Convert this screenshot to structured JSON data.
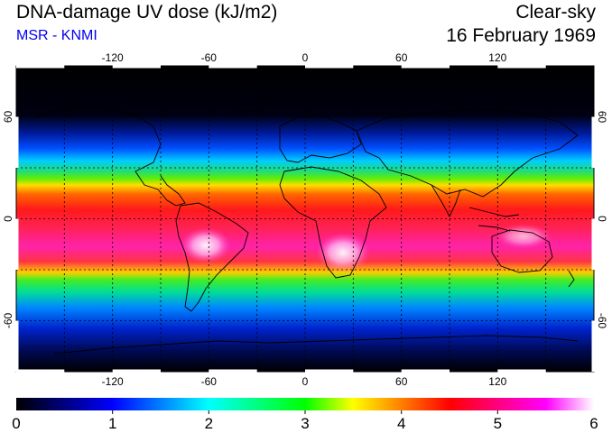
{
  "header": {
    "title": "DNA-damage UV dose (kJ/m2)",
    "subtitle": "MSR - KNMI",
    "sky": "Clear-sky",
    "date": "16 February 1969"
  },
  "map": {
    "longitude_ticks": [
      "-120",
      "-60",
      "0",
      "60",
      "120"
    ],
    "longitude_values": [
      -120,
      -60,
      0,
      60,
      120
    ],
    "latitude_ticks": [
      "60",
      "0",
      "-60"
    ],
    "latitude_values": [
      60,
      0,
      -60
    ],
    "lon_range": [
      -180,
      180
    ],
    "lat_range": [
      -90,
      90
    ],
    "grid": "dotted every 30 degrees"
  },
  "colorbar": {
    "ticks": [
      "0",
      "1",
      "2",
      "3",
      "4",
      "5",
      "6"
    ],
    "range": [
      0,
      6
    ],
    "colors": [
      "#000000",
      "#0000ff",
      "#00ffff",
      "#00ff00",
      "#ffff00",
      "#ff0000",
      "#ff00ff",
      "#ffffff"
    ]
  },
  "colors": {
    "subtitle": "#0000ee",
    "background": "#ffffff"
  }
}
